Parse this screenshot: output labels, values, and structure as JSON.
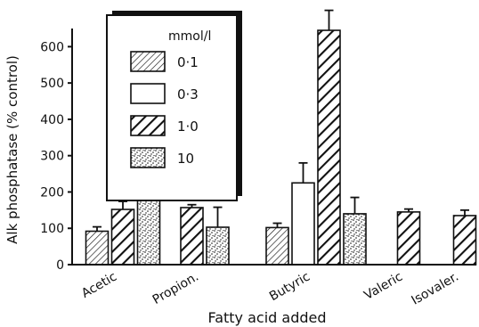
{
  "chart_data": {
    "type": "bar",
    "ylabel": "Alk phosphatase (% control)",
    "xlabel": "Fatty acid added",
    "ylim": [
      0,
      650
    ],
    "yticks": [
      0,
      100,
      200,
      300,
      400,
      500,
      600
    ],
    "categories": [
      "Acetic",
      "Propion.",
      "Butyric",
      "Valeric",
      "Isovaler."
    ],
    "legend": {
      "title": "mmol/l",
      "placement": "top-left",
      "entries": [
        {
          "label": "0·1",
          "pattern": "thin-hatch"
        },
        {
          "label": "0·3",
          "pattern": "open"
        },
        {
          "label": "1·0",
          "pattern": "thick-hatch"
        },
        {
          "label": "10",
          "pattern": "stipple"
        }
      ]
    },
    "bars": [
      {
        "category": "Acetic",
        "series": "0·1",
        "value": 92,
        "error": 12
      },
      {
        "category": "Acetic",
        "series": "1·0",
        "value": 152,
        "error": 22
      },
      {
        "category": "Acetic",
        "series": "10",
        "value": 180,
        "error": 30
      },
      {
        "category": "Propion.",
        "series": "1·0",
        "value": 157,
        "error": 8
      },
      {
        "category": "Propion.",
        "series": "10",
        "value": 103,
        "error": 55
      },
      {
        "category": "Butyric",
        "series": "0·1",
        "value": 102,
        "error": 12
      },
      {
        "category": "Butyric",
        "series": "0·3",
        "value": 225,
        "error": 55
      },
      {
        "category": "Butyric",
        "series": "1·0",
        "value": 645,
        "error": 55
      },
      {
        "category": "Butyric",
        "series": "10",
        "value": 140,
        "error": 45
      },
      {
        "category": "Valeric",
        "series": "1·0",
        "value": 145,
        "error": 8
      },
      {
        "category": "Isovaler.",
        "series": "1·0",
        "value": 135,
        "error": 15
      }
    ]
  }
}
